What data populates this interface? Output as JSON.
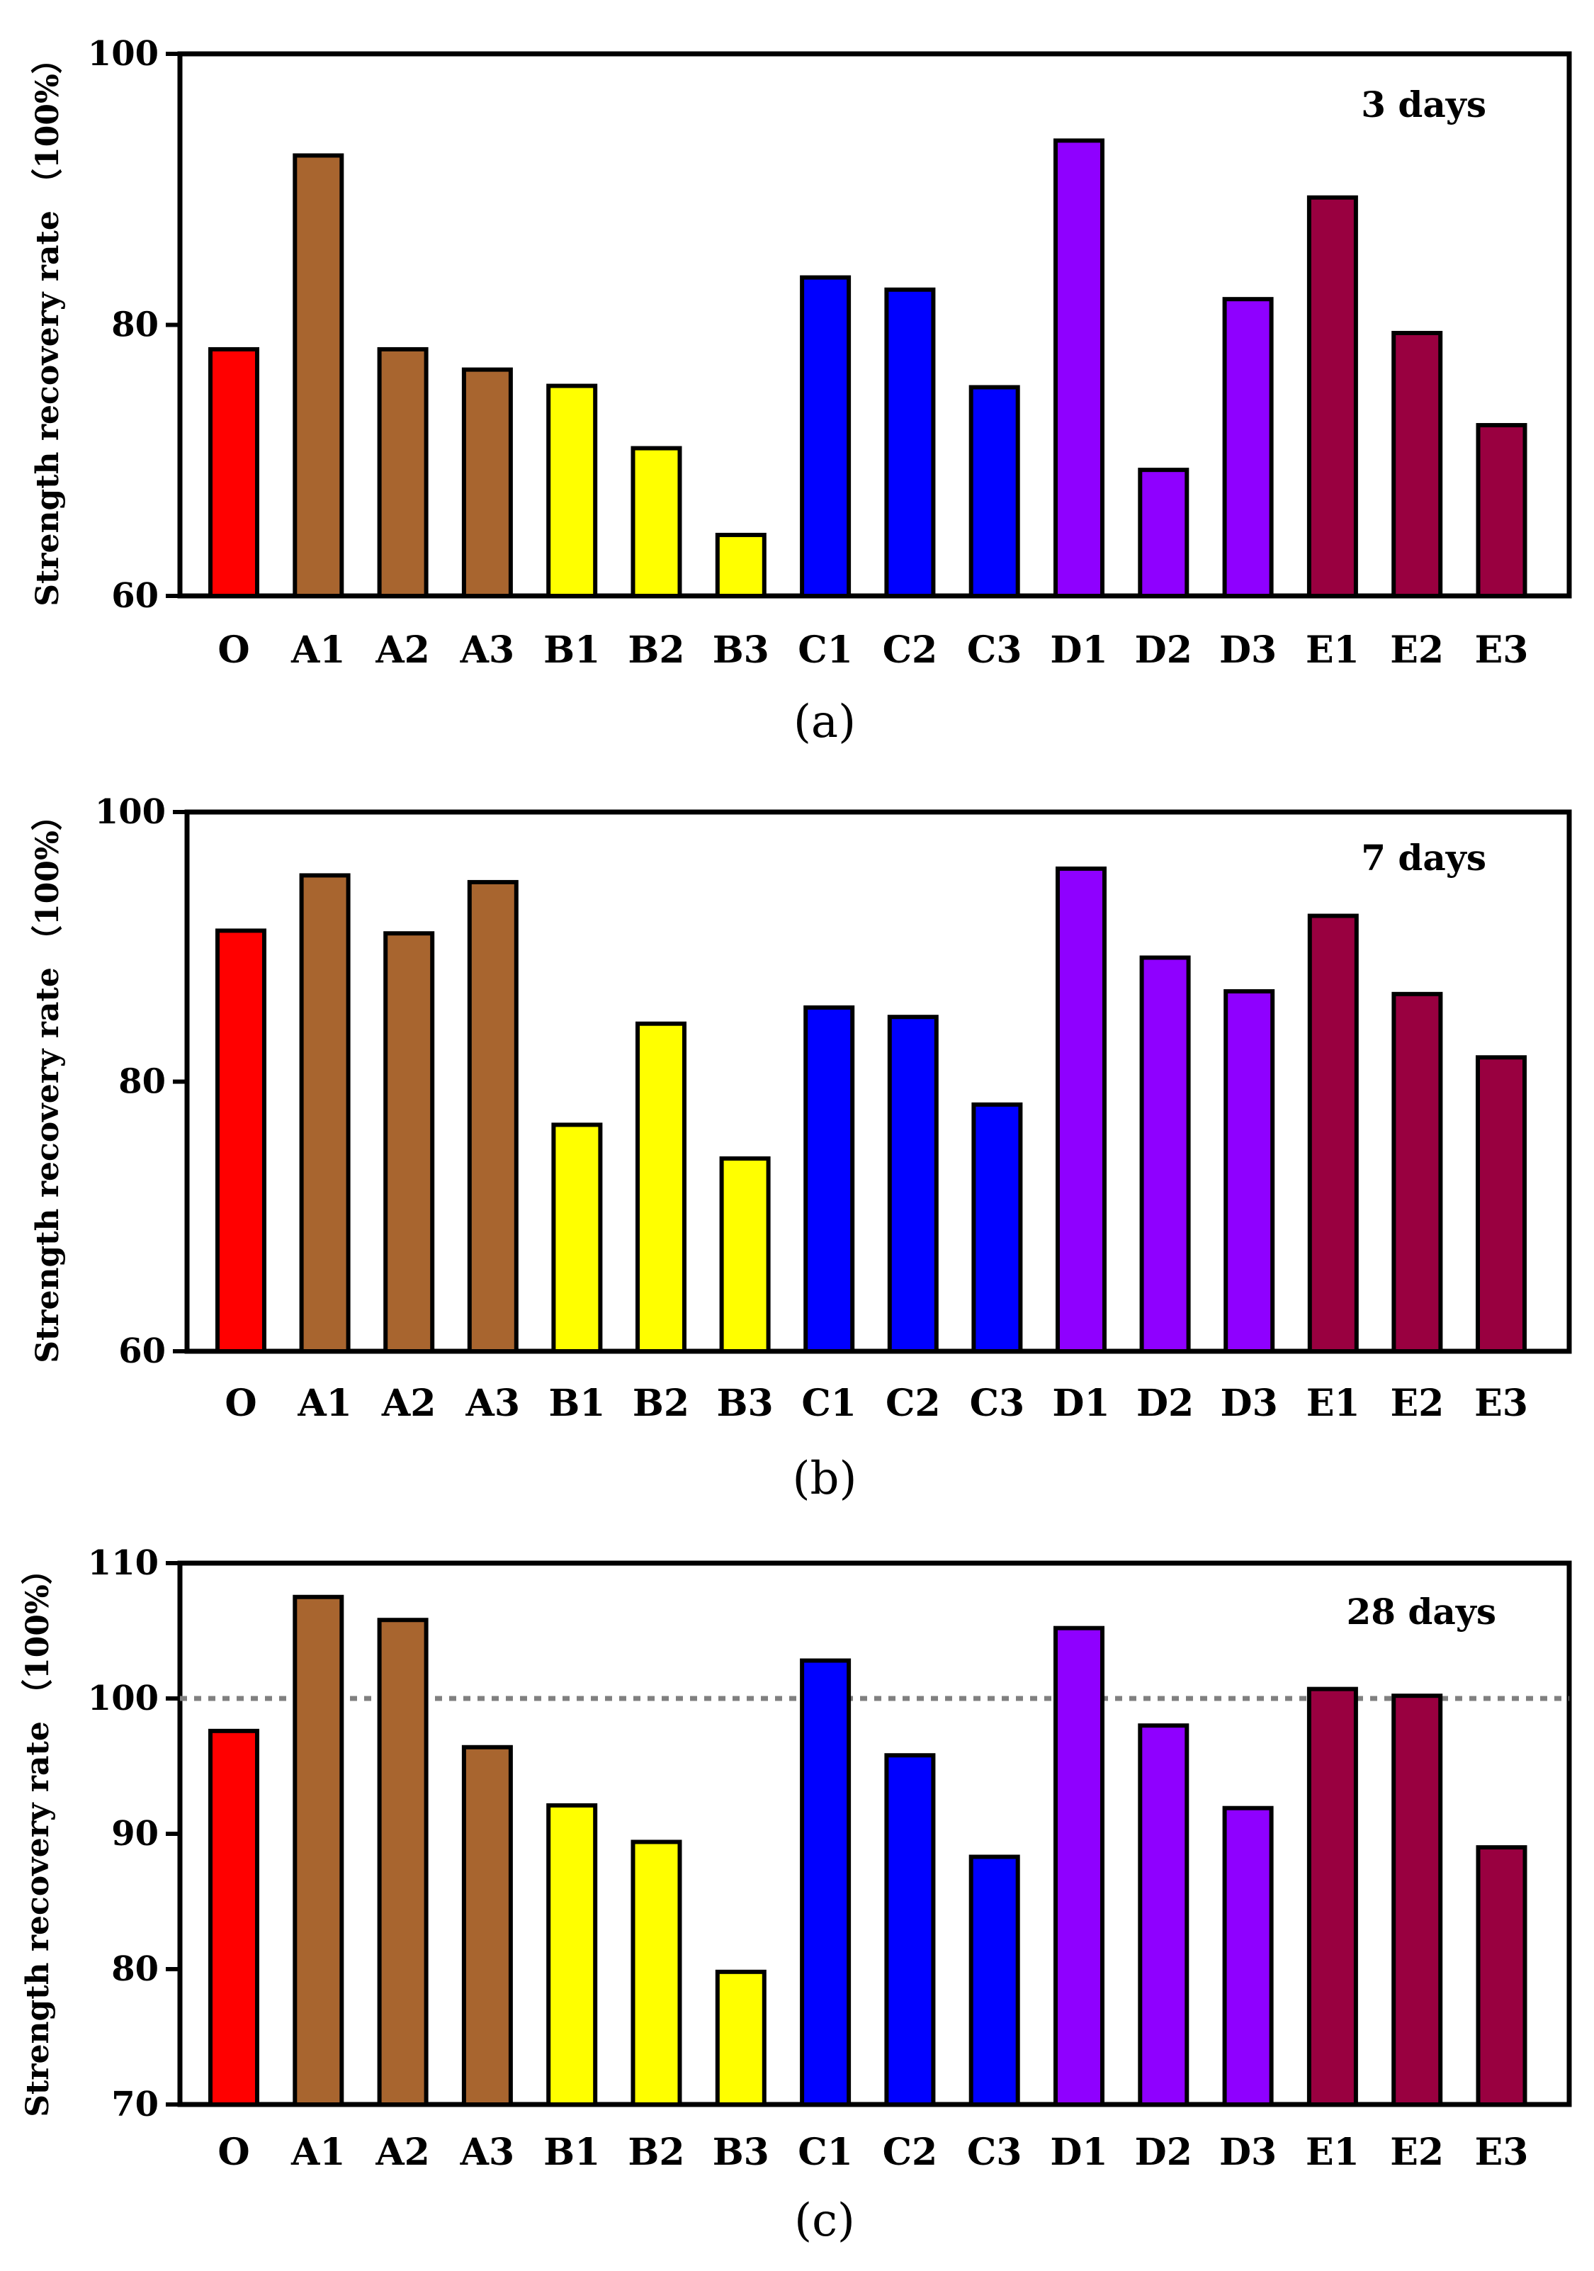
{
  "colors": {
    "O": "#ff0000",
    "A": "#a8652f",
    "B": "#ffff00",
    "C": "#0000ff",
    "D": "#8f00ff",
    "E": "#990040",
    "reference_line": "#808080"
  },
  "chart_data": [
    {
      "type": "bar",
      "annotation": "3 days",
      "caption": "(a)",
      "ylabel": "Strength recovery rate （100%）",
      "ylim": [
        60,
        100
      ],
      "yticks": [
        "60",
        "80",
        "100"
      ],
      "categories": [
        "O",
        "A1",
        "A2",
        "A3",
        "B1",
        "B2",
        "B3",
        "C1",
        "C2",
        "C3",
        "D1",
        "D2",
        "D3",
        "E1",
        "E2",
        "E3"
      ],
      "values": [
        78.2,
        92.5,
        78.2,
        76.7,
        75.5,
        70.9,
        64.5,
        83.5,
        82.6,
        75.4,
        93.6,
        69.3,
        81.9,
        89.4,
        79.4,
        72.6
      ],
      "groups": [
        "O",
        "A",
        "A",
        "A",
        "B",
        "B",
        "B",
        "C",
        "C",
        "C",
        "D",
        "D",
        "D",
        "E",
        "E",
        "E"
      ],
      "reference_line": null
    },
    {
      "type": "bar",
      "annotation": "7 days",
      "caption": "(b)",
      "ylabel": "Strength recovery rate （100%）",
      "ylim": [
        60,
        100
      ],
      "yticks": [
        "60",
        "80",
        "100"
      ],
      "categories": [
        "O",
        "A1",
        "A2",
        "A3",
        "B1",
        "B2",
        "B3",
        "C1",
        "C2",
        "C3",
        "D1",
        "D2",
        "D3",
        "E1",
        "E2",
        "E3"
      ],
      "values": [
        91.2,
        95.3,
        91.0,
        94.8,
        76.8,
        84.3,
        74.3,
        85.5,
        84.8,
        78.3,
        95.8,
        89.2,
        86.7,
        92.3,
        86.5,
        81.8
      ],
      "groups": [
        "O",
        "A",
        "A",
        "A",
        "B",
        "B",
        "B",
        "C",
        "C",
        "C",
        "D",
        "D",
        "D",
        "E",
        "E",
        "E"
      ],
      "reference_line": null
    },
    {
      "type": "bar",
      "annotation": "28 days",
      "caption": "(c)",
      "ylabel": "Strength recovery rate （100%）",
      "ylim": [
        70,
        110
      ],
      "yticks": [
        "70",
        "80",
        "90",
        "100",
        "110"
      ],
      "categories": [
        "O",
        "A1",
        "A2",
        "A3",
        "B1",
        "B2",
        "B3",
        "C1",
        "C2",
        "C3",
        "D1",
        "D2",
        "D3",
        "E1",
        "E2",
        "E3"
      ],
      "values": [
        97.6,
        107.5,
        105.8,
        96.4,
        92.1,
        89.4,
        79.8,
        102.8,
        95.8,
        88.3,
        105.2,
        98.0,
        91.9,
        100.7,
        100.2,
        89.0
      ],
      "groups": [
        "O",
        "A",
        "A",
        "A",
        "B",
        "B",
        "B",
        "C",
        "C",
        "C",
        "D",
        "D",
        "D",
        "E",
        "E",
        "E"
      ],
      "reference_line": 100
    }
  ]
}
